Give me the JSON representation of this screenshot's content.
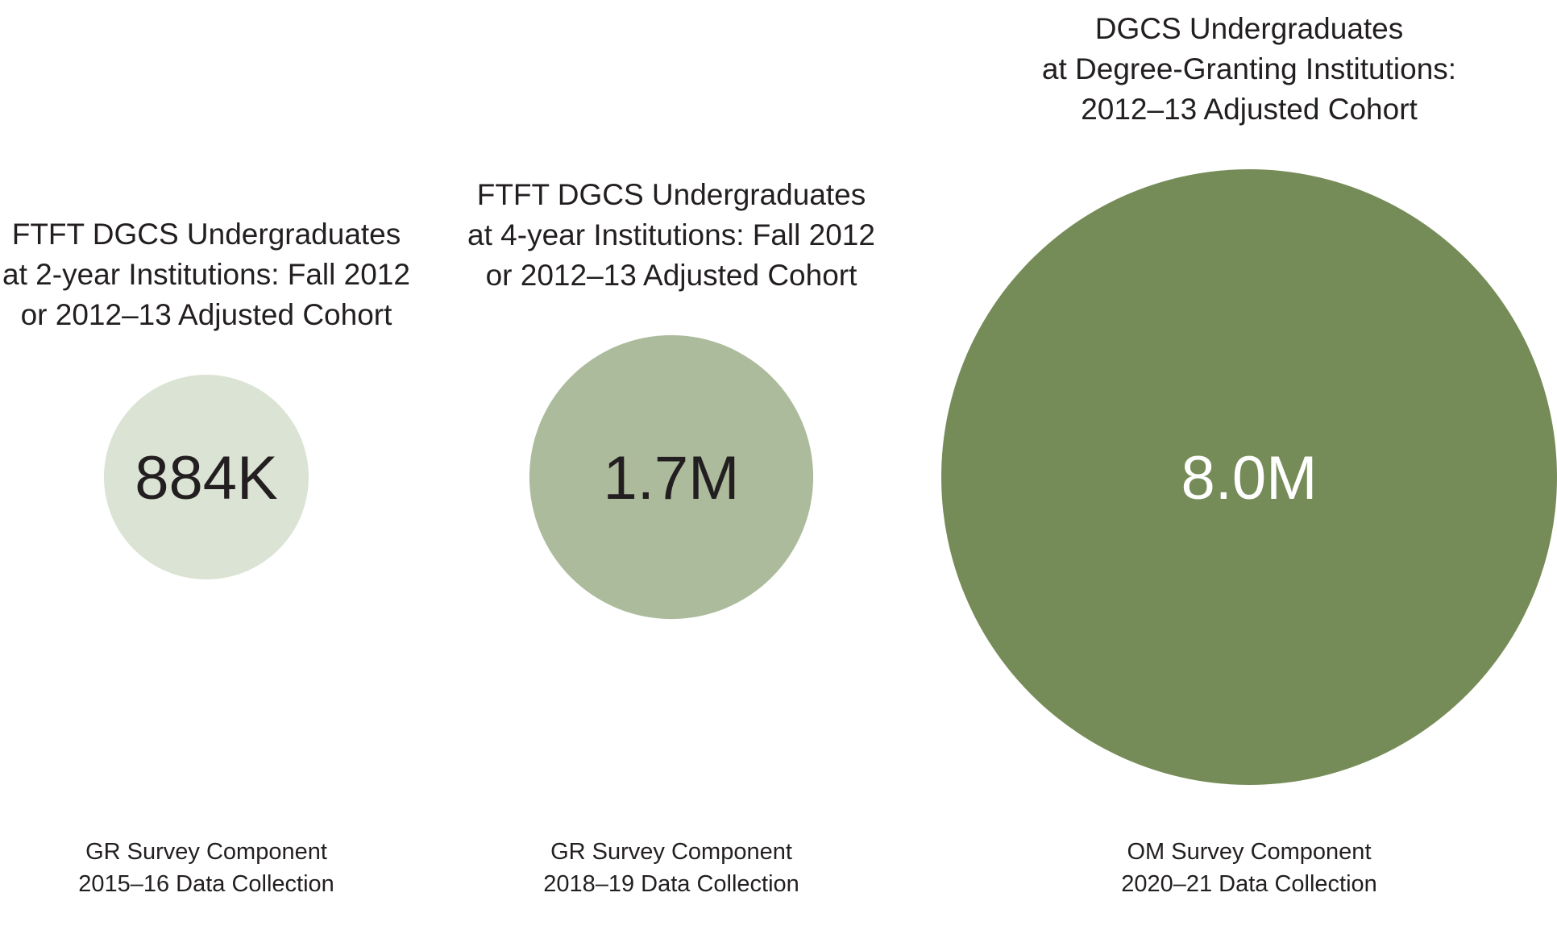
{
  "chart_data": {
    "type": "bubble",
    "title": "",
    "bubbles": [
      {
        "title_lines": [
          "FTFT DGCS Undergraduates",
          "at 2-year Institutions: Fall 2012",
          "or 2012–13 Adjusted Cohort"
        ],
        "value": 884000,
        "value_label": "884K",
        "footer_lines": [
          "GR Survey Component",
          "2015–16 Data Collection"
        ],
        "color": "#dbe3d4",
        "label_color": "#231f20"
      },
      {
        "title_lines": [
          "FTFT DGCS Undergraduates",
          "at 4-year Institutions: Fall 2012",
          "or 2012–13 Adjusted Cohort"
        ],
        "value": 1700000,
        "value_label": "1.7M",
        "footer_lines": [
          "GR Survey Component",
          "2018–19 Data Collection"
        ],
        "color": "#acbb9c",
        "label_color": "#231f20"
      },
      {
        "title_lines": [
          "DGCS Undergraduates",
          "at Degree-Granting Institutions:",
          "2012–13 Adjusted Cohort"
        ],
        "value": 8000000,
        "value_label": "8.0M",
        "footer_lines": [
          "OM Survey Component",
          "2020–21 Data Collection"
        ],
        "color": "#768c58",
        "label_color": "#ffffff"
      }
    ]
  }
}
